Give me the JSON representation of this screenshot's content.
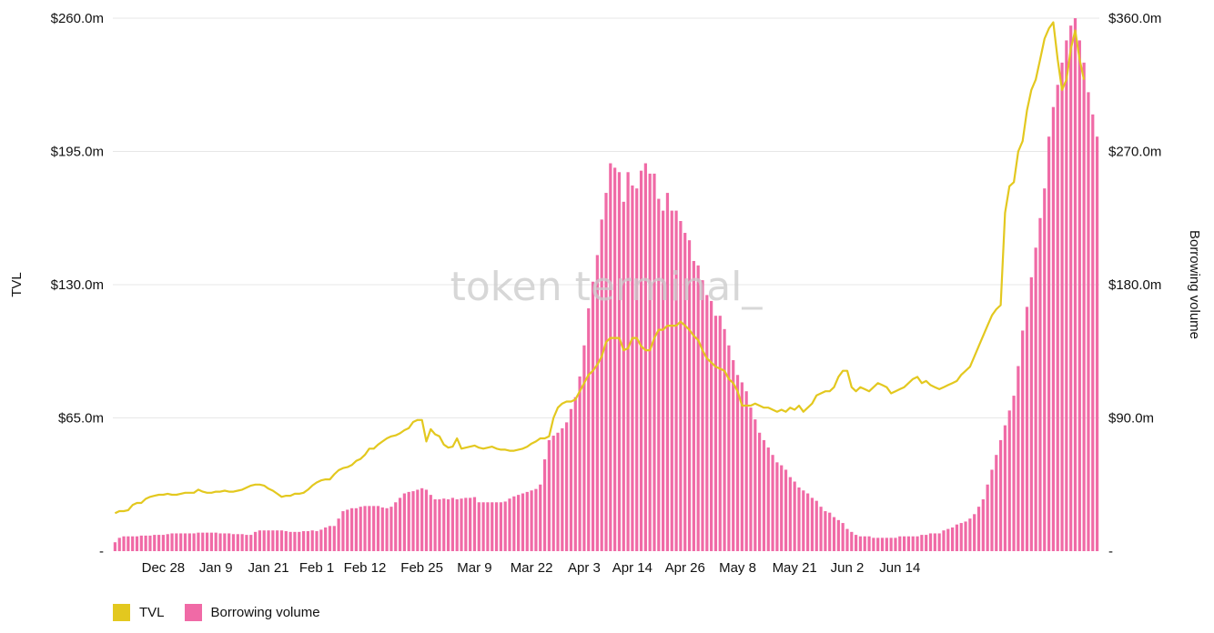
{
  "chart_data": {
    "type": "bar+line",
    "watermark": "token terminal_",
    "y_left": {
      "label": "TVL",
      "ticks": [
        "-",
        "$65.0m",
        "$130.0m",
        "$195.0m",
        "$260.0m"
      ],
      "ylim": [
        0,
        260
      ]
    },
    "y_right": {
      "label": "Borrowing volume",
      "ticks": [
        "-",
        "$90.0m",
        "$180.0m",
        "$270.0m",
        "$360.0m"
      ],
      "ylim": [
        0,
        360
      ]
    },
    "x_ticks": [
      "Dec 28",
      "Jan 9",
      "Jan 21",
      "Feb 1",
      "Feb 12",
      "Feb 25",
      "Mar 9",
      "Mar 22",
      "Apr 3",
      "Apr 14",
      "Apr 26",
      "May 8",
      "May 21",
      "Jun 2",
      "Jun 14"
    ],
    "x_tick_day_index": [
      11,
      23,
      35,
      46,
      57,
      70,
      82,
      95,
      107,
      118,
      130,
      142,
      155,
      167,
      179
    ],
    "start_date": "Dec 17",
    "colors": {
      "tvl": "#e3c81f",
      "borrowing": "#f06aa6"
    },
    "series": [
      {
        "name": "TVL",
        "axis": "left",
        "values": [
          18.5,
          19.5,
          19.5,
          20,
          22.5,
          23.5,
          23.5,
          25.5,
          26.5,
          27,
          27.5,
          27.5,
          28,
          27.5,
          27.5,
          28,
          28.5,
          28.5,
          28.5,
          30,
          29,
          28.5,
          28.5,
          29,
          29,
          29.5,
          29,
          29,
          29.5,
          30,
          31,
          32,
          32.5,
          32.5,
          32,
          30.5,
          29.5,
          28,
          26.5,
          27,
          27,
          28,
          28,
          28.5,
          30,
          32,
          33.5,
          34.5,
          35,
          35,
          37.5,
          39.5,
          40.5,
          41,
          42,
          44,
          45,
          47,
          50,
          50,
          52,
          53.5,
          55,
          56,
          56.5,
          57.5,
          59,
          60,
          63,
          64,
          64,
          53.5,
          59.5,
          57,
          56,
          52,
          50.5,
          51,
          55,
          50,
          50.5,
          51,
          51.5,
          50.5,
          50,
          50.5,
          51,
          50,
          49.5,
          49.5,
          49,
          49,
          49.5,
          50,
          51,
          52.5,
          53.5,
          55,
          55,
          56,
          65,
          70,
          72,
          73,
          73,
          74,
          78,
          82,
          86,
          88,
          91,
          95,
          102,
          104,
          104,
          104,
          98,
          99,
          104,
          104,
          100,
          98,
          98,
          104,
          108,
          108,
          110,
          110,
          110,
          112,
          110,
          108,
          105,
          103,
          98,
          94,
          92,
          90,
          89,
          88,
          84,
          82,
          78,
          71,
          71,
          71,
          72,
          71,
          70,
          70,
          69,
          68,
          69,
          68,
          70,
          69,
          71,
          68,
          70,
          72,
          76,
          77,
          78,
          78,
          80,
          85,
          88,
          88,
          80,
          78,
          80,
          79,
          78,
          80,
          82,
          81,
          80,
          77,
          78,
          79,
          80,
          82,
          84,
          85,
          82,
          83,
          81,
          80,
          79,
          80,
          81,
          82,
          83,
          86,
          88,
          90,
          95,
          100,
          105,
          110,
          115,
          118,
          120,
          165,
          178,
          180,
          195,
          200,
          215,
          225,
          230,
          240,
          250,
          255,
          258,
          240,
          225,
          230,
          245,
          254,
          240,
          230
        ]
      },
      {
        "name": "Borrowing volume",
        "axis": "right",
        "values": [
          6,
          9,
          10,
          10,
          10,
          10,
          10.5,
          10.5,
          10.5,
          11,
          11,
          11,
          11.5,
          12,
          12,
          12,
          12,
          12,
          12,
          12.5,
          12.5,
          12.5,
          12.5,
          12.5,
          12,
          12,
          12,
          11.5,
          11.5,
          11.5,
          11,
          11,
          13,
          14,
          14,
          14,
          14,
          14,
          14,
          13.5,
          13,
          13,
          13,
          13.5,
          13.5,
          14,
          13.5,
          14.5,
          16,
          17,
          17,
          22,
          27,
          28,
          29,
          29,
          30,
          30.5,
          30.5,
          30.5,
          30.5,
          29.5,
          29,
          30,
          33,
          36,
          39,
          40,
          40.5,
          41.5,
          42.5,
          41.5,
          38,
          35,
          35,
          35.5,
          35,
          36,
          35,
          35.5,
          36,
          36,
          36.5,
          33,
          33,
          33,
          33,
          33,
          33,
          33.5,
          35.5,
          37,
          38,
          39,
          40,
          41,
          42,
          45,
          62,
          75,
          78,
          80,
          83,
          87,
          96,
          104,
          118,
          139,
          164,
          182,
          200,
          224,
          242,
          262,
          259,
          256,
          236,
          256,
          247,
          245,
          257,
          262,
          255,
          255,
          238,
          230,
          242,
          230,
          230,
          223,
          215,
          210,
          196,
          193,
          183,
          173,
          169,
          159,
          159,
          150,
          139,
          129,
          119,
          114,
          108,
          97,
          89,
          80,
          75,
          70,
          65,
          60,
          58,
          55,
          50,
          47,
          43,
          41,
          39,
          36,
          34,
          30,
          27,
          26,
          23,
          21,
          19,
          15,
          13,
          11,
          10,
          10,
          10,
          9,
          9,
          9,
          9,
          9,
          9,
          10,
          10,
          10,
          10,
          10,
          11,
          11,
          12,
          12,
          12,
          14,
          15,
          16,
          18,
          19,
          20,
          22,
          25,
          30,
          35,
          45,
          55,
          65,
          75,
          85,
          95,
          105,
          125,
          149,
          165,
          185,
          205,
          225,
          245,
          280,
          300,
          315,
          330,
          345,
          355,
          360,
          345,
          330,
          310,
          295,
          280
        ]
      }
    ]
  },
  "legend": [
    {
      "label": "TVL",
      "color": "#e3c81f"
    },
    {
      "label": "Borrowing volume",
      "color": "#f06aa6"
    }
  ]
}
